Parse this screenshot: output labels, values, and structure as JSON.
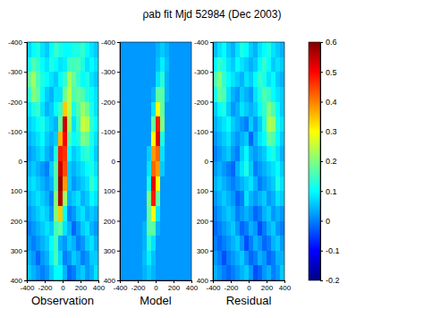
{
  "chart_data": {
    "type": "heatmap",
    "title": "ρab fit Mjd 52984 (Dec 2003)",
    "x": [
      -375,
      -325,
      -275,
      -225,
      -175,
      -125,
      -75,
      -25,
      25,
      75,
      125,
      175,
      225,
      275,
      325,
      375
    ],
    "y": [
      -375,
      -325,
      -275,
      -225,
      -175,
      -125,
      -75,
      -25,
      25,
      75,
      125,
      175,
      225,
      275,
      325,
      375
    ],
    "xlim": [
      -400,
      400
    ],
    "ylim": [
      -400,
      400
    ],
    "xticks": [
      -400,
      -200,
      0,
      200,
      400
    ],
    "yticks": [
      -400,
      -300,
      -200,
      -100,
      0,
      100,
      200,
      300,
      400
    ],
    "colorbar": {
      "range": [
        -0.2,
        0.6
      ],
      "ticks": [
        -0.2,
        -0.1,
        0,
        0.1,
        0.2,
        0.3,
        0.4,
        0.5,
        0.6
      ]
    },
    "panels": [
      {
        "label": "Observation",
        "values": [
          [
            0.07,
            0.1,
            0.12,
            0.08,
            0.06,
            0.1,
            0.14,
            0.12,
            0.1,
            0.1,
            0.12,
            0.12,
            0.14,
            0.1,
            0.08,
            0.06
          ],
          [
            0.12,
            0.16,
            0.14,
            0.1,
            0.08,
            0.12,
            0.1,
            0.08,
            0.09,
            0.15,
            0.15,
            0.16,
            0.12,
            0.08,
            0.1,
            0.08
          ],
          [
            0.18,
            0.22,
            0.16,
            0.12,
            0.1,
            0.08,
            0.06,
            0.1,
            0.14,
            0.23,
            0.18,
            0.14,
            0.1,
            0.12,
            0.08,
            0.06
          ],
          [
            0.14,
            0.2,
            0.18,
            0.1,
            0.06,
            0.04,
            0.08,
            0.08,
            0.19,
            0.25,
            0.16,
            0.18,
            0.16,
            0.12,
            0.1,
            0.08
          ],
          [
            0.08,
            0.12,
            0.14,
            0.08,
            0.04,
            0.06,
            0.1,
            0.14,
            0.34,
            0.24,
            0.12,
            0.16,
            0.22,
            0.18,
            0.12,
            0.08
          ],
          [
            0.06,
            0.08,
            0.1,
            0.12,
            0.08,
            0.06,
            0.04,
            0.18,
            0.54,
            0.22,
            0.08,
            0.14,
            0.26,
            0.24,
            0.14,
            0.1
          ],
          [
            0.04,
            0.06,
            0.08,
            0.1,
            0.06,
            0.04,
            0.06,
            0.36,
            0.5,
            0.16,
            0.1,
            0.12,
            0.2,
            0.18,
            0.12,
            0.08
          ],
          [
            0.02,
            0.04,
            0.06,
            0.08,
            0.04,
            0.02,
            0.12,
            0.48,
            0.46,
            0.1,
            0.06,
            0.08,
            0.12,
            0.14,
            0.1,
            0.06
          ],
          [
            0.04,
            0.06,
            0.04,
            0.02,
            0.0,
            0.06,
            0.16,
            0.54,
            0.44,
            0.06,
            0.04,
            0.06,
            0.08,
            0.1,
            0.12,
            0.08
          ],
          [
            0.06,
            0.08,
            0.06,
            0.04,
            0.02,
            0.04,
            0.16,
            0.58,
            0.38,
            0.06,
            0.02,
            0.04,
            0.06,
            0.08,
            0.14,
            0.1
          ],
          [
            0.04,
            0.06,
            0.08,
            0.06,
            0.04,
            0.0,
            0.2,
            0.56,
            0.22,
            0.04,
            0.06,
            0.08,
            0.04,
            0.06,
            0.1,
            0.08
          ],
          [
            0.02,
            0.04,
            0.06,
            0.08,
            0.06,
            0.02,
            0.2,
            0.34,
            0.1,
            0.0,
            0.02,
            0.06,
            0.08,
            0.04,
            0.06,
            0.04
          ],
          [
            0.0,
            0.02,
            0.04,
            0.06,
            0.08,
            0.06,
            0.15,
            0.17,
            0.08,
            0.04,
            -0.02,
            0.02,
            0.06,
            0.08,
            0.04,
            0.02
          ],
          [
            0.02,
            0.0,
            0.02,
            0.04,
            0.06,
            0.1,
            0.15,
            0.04,
            0.02,
            0.06,
            0.04,
            0.0,
            0.02,
            0.06,
            0.08,
            0.04
          ],
          [
            0.04,
            0.02,
            -0.02,
            0.02,
            0.04,
            0.09,
            0.15,
            0.07,
            0.0,
            0.02,
            0.06,
            0.04,
            0.0,
            0.02,
            0.06,
            0.06
          ],
          [
            0.06,
            0.04,
            0.02,
            0.0,
            0.02,
            0.06,
            0.1,
            0.1,
            0.04,
            -0.02,
            0.0,
            0.04,
            0.06,
            0.02,
            0.04,
            0.08
          ]
        ]
      },
      {
        "label": "Model",
        "values": [
          [
            0.02,
            0.02,
            0.02,
            0.02,
            0.02,
            0.02,
            0.02,
            0.02,
            0.04,
            0.06,
            0.04,
            0.02,
            0.02,
            0.02,
            0.02,
            0.02
          ],
          [
            0.02,
            0.02,
            0.02,
            0.02,
            0.02,
            0.02,
            0.02,
            0.02,
            0.05,
            0.09,
            0.05,
            0.02,
            0.02,
            0.02,
            0.02,
            0.02
          ],
          [
            0.02,
            0.02,
            0.02,
            0.02,
            0.02,
            0.02,
            0.02,
            0.02,
            0.08,
            0.13,
            0.04,
            0.02,
            0.02,
            0.02,
            0.02,
            0.02
          ],
          [
            0.02,
            0.02,
            0.02,
            0.02,
            0.02,
            0.02,
            0.02,
            0.04,
            0.17,
            0.17,
            0.04,
            0.02,
            0.02,
            0.02,
            0.02,
            0.02
          ],
          [
            0.02,
            0.02,
            0.02,
            0.02,
            0.02,
            0.02,
            0.02,
            0.08,
            0.3,
            0.18,
            0.02,
            0.02,
            0.02,
            0.02,
            0.02,
            0.02
          ],
          [
            0.02,
            0.02,
            0.02,
            0.02,
            0.02,
            0.02,
            0.02,
            0.18,
            0.48,
            0.2,
            0.02,
            0.02,
            0.02,
            0.02,
            0.02,
            0.02
          ],
          [
            0.02,
            0.02,
            0.02,
            0.02,
            0.02,
            0.02,
            0.02,
            0.3,
            0.52,
            0.12,
            0.02,
            0.02,
            0.02,
            0.02,
            0.02,
            0.02
          ],
          [
            0.02,
            0.02,
            0.02,
            0.02,
            0.02,
            0.02,
            0.06,
            0.38,
            0.42,
            0.08,
            0.02,
            0.02,
            0.02,
            0.02,
            0.02,
            0.02
          ],
          [
            0.02,
            0.02,
            0.02,
            0.02,
            0.02,
            0.02,
            0.08,
            0.42,
            0.38,
            0.06,
            0.02,
            0.02,
            0.02,
            0.02,
            0.02,
            0.02
          ],
          [
            0.02,
            0.02,
            0.02,
            0.02,
            0.02,
            0.02,
            0.12,
            0.52,
            0.3,
            0.02,
            0.02,
            0.02,
            0.02,
            0.02,
            0.02,
            0.02
          ],
          [
            0.02,
            0.02,
            0.02,
            0.02,
            0.02,
            0.02,
            0.2,
            0.48,
            0.18,
            0.02,
            0.02,
            0.02,
            0.02,
            0.02,
            0.02,
            0.02
          ],
          [
            0.02,
            0.02,
            0.02,
            0.02,
            0.02,
            0.02,
            0.18,
            0.3,
            0.08,
            0.02,
            0.02,
            0.02,
            0.02,
            0.02,
            0.02,
            0.02
          ],
          [
            0.02,
            0.02,
            0.02,
            0.02,
            0.02,
            0.04,
            0.17,
            0.17,
            0.04,
            0.02,
            0.02,
            0.02,
            0.02,
            0.02,
            0.02,
            0.02
          ],
          [
            0.02,
            0.02,
            0.02,
            0.02,
            0.02,
            0.04,
            0.13,
            0.08,
            0.02,
            0.02,
            0.02,
            0.02,
            0.02,
            0.02,
            0.02,
            0.02
          ],
          [
            0.02,
            0.02,
            0.02,
            0.02,
            0.02,
            0.05,
            0.09,
            0.05,
            0.02,
            0.02,
            0.02,
            0.02,
            0.02,
            0.02,
            0.02,
            0.02
          ],
          [
            0.02,
            0.02,
            0.02,
            0.02,
            0.02,
            0.04,
            0.06,
            0.04,
            0.02,
            0.02,
            0.02,
            0.02,
            0.02,
            0.02,
            0.02,
            0.02
          ]
        ]
      },
      {
        "label": "Residual",
        "values": [
          [
            0.05,
            0.08,
            0.1,
            0.06,
            0.04,
            0.08,
            0.12,
            0.1,
            0.06,
            0.04,
            0.08,
            0.1,
            0.12,
            0.08,
            0.06,
            0.04
          ],
          [
            0.1,
            0.14,
            0.12,
            0.08,
            0.06,
            0.1,
            0.08,
            0.06,
            0.04,
            0.06,
            0.1,
            0.14,
            0.1,
            0.06,
            0.08,
            0.06
          ],
          [
            0.16,
            0.2,
            0.14,
            0.1,
            0.08,
            0.06,
            0.04,
            0.08,
            0.06,
            0.1,
            0.14,
            0.12,
            0.08,
            0.1,
            0.06,
            0.04
          ],
          [
            0.12,
            0.18,
            0.16,
            0.08,
            0.04,
            0.02,
            0.06,
            0.04,
            0.02,
            0.08,
            0.12,
            0.16,
            0.14,
            0.1,
            0.08,
            0.06
          ],
          [
            0.06,
            0.1,
            0.12,
            0.06,
            0.02,
            0.04,
            0.08,
            0.06,
            0.04,
            0.06,
            0.1,
            0.14,
            0.2,
            0.16,
            0.1,
            0.06
          ],
          [
            0.04,
            0.06,
            0.08,
            0.1,
            0.06,
            0.04,
            0.02,
            0.0,
            0.06,
            0.02,
            0.06,
            0.12,
            0.24,
            0.22,
            0.12,
            0.08
          ],
          [
            0.02,
            0.04,
            0.06,
            0.08,
            0.04,
            0.02,
            0.04,
            0.06,
            -0.02,
            0.04,
            0.08,
            0.1,
            0.18,
            0.16,
            0.1,
            0.06
          ],
          [
            0.0,
            0.02,
            0.04,
            0.06,
            0.02,
            0.0,
            0.06,
            0.1,
            0.04,
            0.02,
            0.04,
            0.06,
            0.1,
            0.12,
            0.08,
            0.04
          ],
          [
            0.02,
            0.04,
            0.02,
            0.0,
            -0.02,
            0.04,
            0.08,
            0.12,
            0.06,
            0.0,
            0.02,
            0.04,
            0.06,
            0.08,
            0.1,
            0.06
          ],
          [
            0.04,
            0.06,
            0.04,
            0.02,
            0.0,
            0.02,
            0.04,
            0.06,
            0.08,
            0.04,
            0.0,
            0.02,
            0.04,
            0.06,
            0.12,
            0.08
          ],
          [
            0.02,
            0.04,
            0.06,
            0.04,
            0.02,
            -0.02,
            0.0,
            0.08,
            0.04,
            0.02,
            0.04,
            0.06,
            0.02,
            0.04,
            0.08,
            0.06
          ],
          [
            0.0,
            0.02,
            0.04,
            0.06,
            0.04,
            0.0,
            0.02,
            0.04,
            0.02,
            -0.02,
            0.0,
            0.04,
            0.06,
            0.02,
            0.04,
            0.02
          ],
          [
            -0.02,
            0.0,
            0.02,
            0.04,
            0.06,
            0.02,
            -0.02,
            0.0,
            0.04,
            0.02,
            -0.04,
            0.0,
            0.04,
            0.06,
            0.02,
            0.0
          ],
          [
            0.0,
            -0.02,
            0.0,
            0.02,
            0.04,
            0.06,
            0.02,
            -0.04,
            0.0,
            0.04,
            0.02,
            -0.02,
            0.0,
            0.04,
            0.06,
            0.02
          ],
          [
            0.02,
            0.0,
            -0.04,
            0.0,
            0.02,
            0.04,
            0.06,
            0.02,
            -0.02,
            0.0,
            0.04,
            0.02,
            -0.02,
            0.0,
            0.04,
            0.04
          ],
          [
            0.04,
            0.02,
            0.0,
            -0.02,
            0.0,
            0.02,
            0.04,
            0.06,
            0.02,
            -0.04,
            -0.02,
            0.02,
            0.04,
            0.0,
            0.02,
            0.06
          ]
        ]
      }
    ]
  }
}
